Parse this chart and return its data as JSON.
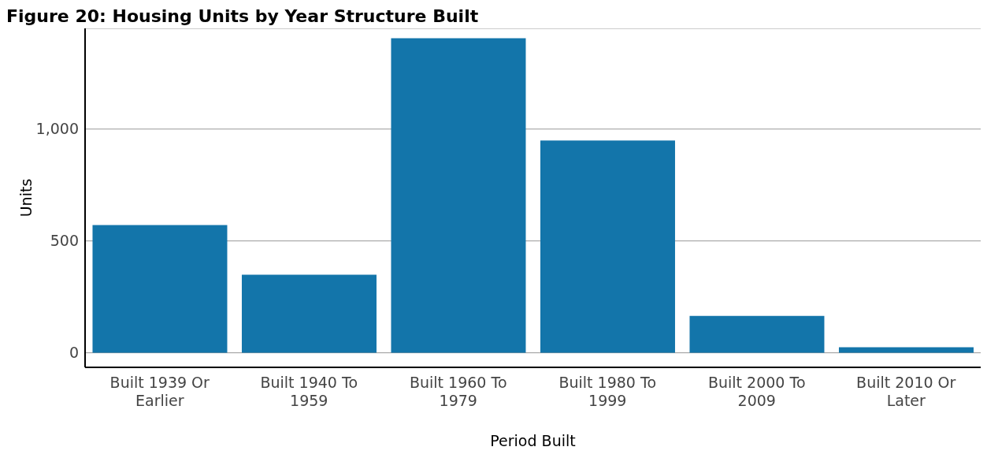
{
  "chart_data": {
    "type": "bar",
    "title": "Figure 20: Housing Units by Year Structure Built",
    "xlabel": "Period Built",
    "ylabel": "Units",
    "categories": [
      "Built 1939 Or Earlier",
      "Built 1940 To 1959",
      "Built 1960 To 1979",
      "Built 1980 To 1999",
      "Built 2000 To 2009",
      "Built 2010 Or Later"
    ],
    "values": [
      571,
      349,
      1406,
      949,
      165,
      25
    ],
    "color": "#1375aa",
    "ylim": [
      -65,
      1450
    ],
    "yticks": [
      {
        "value": 0,
        "label": "0"
      },
      {
        "value": 500,
        "label": "500"
      },
      {
        "value": 1000,
        "label": "1,000"
      }
    ],
    "grid": "y"
  }
}
